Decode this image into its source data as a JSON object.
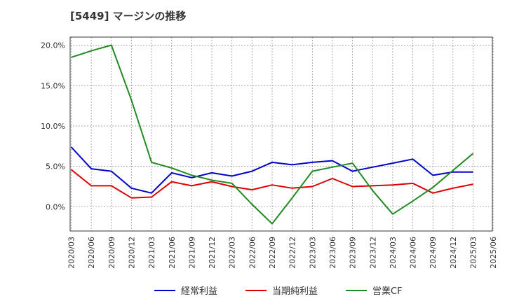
{
  "title": "[5449]  マージンの推移",
  "chart_data": {
    "type": "line",
    "x": [
      "2020/03",
      "2020/06",
      "2020/09",
      "2020/12",
      "2021/03",
      "2021/06",
      "2021/09",
      "2021/12",
      "2022/03",
      "2022/06",
      "2022/09",
      "2022/12",
      "2023/03",
      "2023/06",
      "2023/09",
      "2023/12",
      "2024/03",
      "2024/06",
      "2024/09",
      "2024/12",
      "2025/03"
    ],
    "x_tick_labels": [
      "2020/03",
      "2020/06",
      "2020/09",
      "2020/12",
      "2021/03",
      "2021/06",
      "2021/09",
      "2021/12",
      "2022/03",
      "2022/06",
      "2022/09",
      "2022/12",
      "2023/03",
      "2023/06",
      "2023/09",
      "2023/12",
      "2024/03",
      "2024/06",
      "2024/09",
      "2024/12",
      "2025/03",
      "2025/06"
    ],
    "y_ticks": [
      "20.0%",
      "15.0%",
      "10.0%",
      "5.0%",
      "0.0%"
    ],
    "y_tick_values": [
      20,
      15,
      10,
      5,
      0
    ],
    "ylim": [
      -3.0,
      21.0
    ],
    "grid": true,
    "legend_position": "bottom",
    "series": [
      {
        "name": "経常利益",
        "color": "#0000cc",
        "values": [
          7.4,
          4.7,
          4.4,
          2.3,
          1.7,
          4.2,
          3.6,
          4.2,
          3.8,
          4.4,
          5.5,
          5.2,
          5.5,
          5.7,
          4.4,
          4.9,
          5.4,
          5.9,
          3.9,
          4.3,
          4.3
        ]
      },
      {
        "name": "当期純利益",
        "color": "#dd0000",
        "values": [
          4.6,
          2.6,
          2.6,
          1.1,
          1.2,
          3.1,
          2.6,
          3.1,
          2.5,
          2.1,
          2.7,
          2.3,
          2.5,
          3.5,
          2.5,
          2.6,
          2.7,
          2.9,
          1.7,
          2.3,
          2.8
        ]
      },
      {
        "name": "営業CF",
        "color": "#228b22",
        "values": [
          18.5,
          19.3,
          20.0,
          13.2,
          5.5,
          4.8,
          3.9,
          3.3,
          2.9,
          0.3,
          -2.1,
          1.1,
          4.4,
          4.9,
          5.4,
          2.0,
          -0.9,
          0.7,
          2.4,
          4.5,
          6.6
        ]
      }
    ]
  }
}
